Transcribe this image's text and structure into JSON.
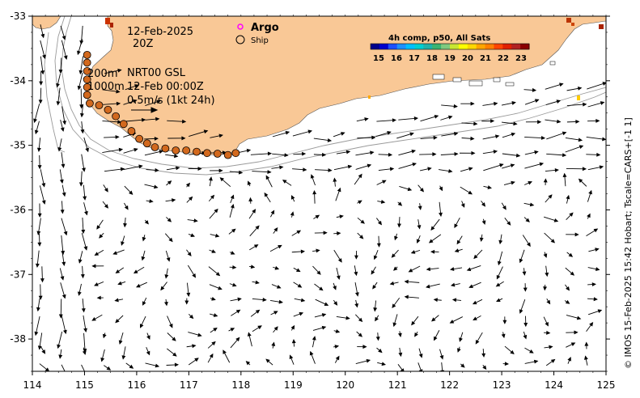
{
  "map": {
    "date_label": "12-Feb-2025",
    "time_label": "20Z",
    "legend": {
      "argo": "Argo",
      "ship": "Ship"
    },
    "colorbar": {
      "title": "4h comp, p50, All Sats",
      "ticks": [
        "15",
        "16",
        "17",
        "18",
        "19",
        "20",
        "21",
        "22",
        "23"
      ]
    },
    "depth_contours": "200m",
    "depth_contours_2": "1000m",
    "product": "NRT00 GSL",
    "product_time": "12-Feb 00:00Z",
    "scale_label": "0.5m/s (1kt 24h)",
    "credit": "© IMOS 15-Feb-2025 15:42 Hobart; Tscale=CARS+[-1 1]",
    "colors": {
      "land": "#f9c896",
      "arrow": "#000000",
      "argo": "#ff00ff",
      "drifter": "#d2691e"
    }
  },
  "axes": {
    "x_label_values": [
      "114",
      "115",
      "116",
      "117",
      "118",
      "119",
      "120",
      "121",
      "122",
      "123",
      "124",
      "125"
    ],
    "y_label_values": [
      "-33",
      "-34",
      "-35",
      "-36",
      "-37",
      "-38"
    ],
    "lon_range": [
      114,
      125
    ],
    "lat_range": [
      -38.5,
      -33
    ]
  },
  "drifter_track": [
    [
      115.05,
      -33.6
    ],
    [
      115.05,
      -33.72
    ],
    [
      115.05,
      -33.85
    ],
    [
      115.05,
      -33.98
    ],
    [
      115.05,
      -34.1
    ],
    [
      115.05,
      -34.22
    ],
    [
      115.1,
      -34.35
    ],
    [
      115.28,
      -34.38
    ],
    [
      115.45,
      -34.45
    ],
    [
      115.6,
      -34.55
    ],
    [
      115.75,
      -34.67
    ],
    [
      115.9,
      -34.78
    ],
    [
      116.05,
      -34.9
    ],
    [
      116.2,
      -34.97
    ],
    [
      116.35,
      -35.03
    ],
    [
      116.55,
      -35.05
    ],
    [
      116.75,
      -35.08
    ],
    [
      116.95,
      -35.08
    ],
    [
      117.15,
      -35.1
    ],
    [
      117.35,
      -35.12
    ],
    [
      117.55,
      -35.13
    ],
    [
      117.75,
      -35.15
    ],
    [
      117.9,
      -35.12
    ]
  ]
}
